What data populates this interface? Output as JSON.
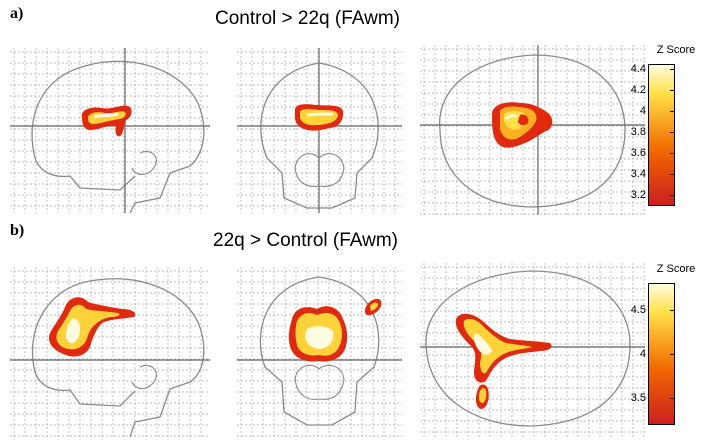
{
  "figure": {
    "panels": [
      {
        "id": "a",
        "letter": "a)",
        "title": "Control > 22q (FAwm)",
        "colorbar": {
          "title": "Z Score",
          "ticks": [
            "4.4",
            "4.2",
            "4",
            "3.8",
            "3.6",
            "3.4",
            "3.2"
          ],
          "range": [
            3.1,
            4.45
          ],
          "colors": {
            "low": "#cc1f1f",
            "mid": "#f26a00",
            "high": "#ffe24a",
            "top": "#fffbe0"
          }
        }
      },
      {
        "id": "b",
        "letter": "b)",
        "title": "22q > Control (FAwm)",
        "colorbar": {
          "title": "Z Score",
          "ticks": [
            "4.5",
            "4",
            "3.5"
          ],
          "range": [
            3.2,
            4.8
          ],
          "colors": {
            "low": "#cc1f1f",
            "mid": "#f26a00",
            "high": "#ffe24a",
            "top": "#fffbe0"
          }
        }
      }
    ],
    "views": [
      "sagittal",
      "coronal",
      "axial"
    ],
    "colors": {
      "outline": "#8a8a8a",
      "grid": "#a8a8a8",
      "crosshair": "#7a7a7a"
    }
  }
}
